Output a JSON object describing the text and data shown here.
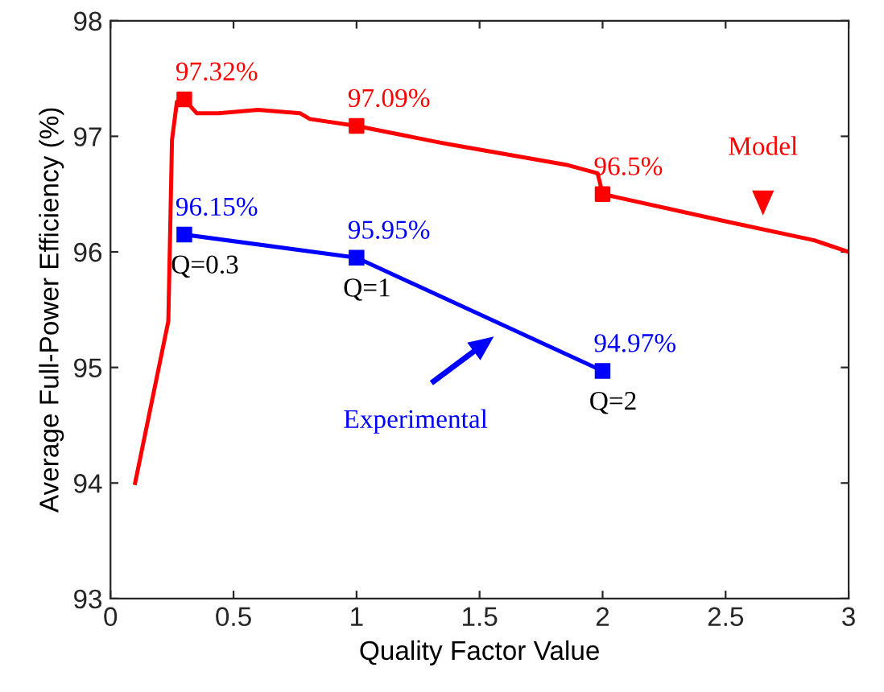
{
  "chart_data": {
    "type": "line",
    "xlabel": "Quality Factor Value",
    "ylabel": "Average Full-Power Efficiency (%)",
    "xlim": [
      0,
      3
    ],
    "ylim": [
      93,
      98
    ],
    "xticks": [
      0,
      0.5,
      1,
      1.5,
      2,
      2.5,
      3
    ],
    "yticks": [
      93,
      94,
      95,
      96,
      97,
      98
    ],
    "grid": false,
    "line_style": "solid",
    "series": [
      {
        "name": "Model",
        "color": "#ff0000",
        "marker": "none",
        "x": [
          0.1,
          0.235,
          0.25,
          0.27,
          0.3,
          0.35,
          0.44,
          0.6,
          0.77,
          0.81,
          1,
          1.33,
          1.38,
          1.86,
          1.98,
          2,
          2.51,
          2.86,
          3
        ],
        "values": [
          94.0,
          95.4,
          96.97,
          97.3,
          97.32,
          97.2,
          97.2,
          97.23,
          97.2,
          97.15,
          97.09,
          96.95,
          96.93,
          96.75,
          96.68,
          96.5,
          96.26,
          96.1,
          96.0
        ]
      },
      {
        "type": "scatter",
        "color": "#ff0000",
        "marker": "square",
        "x": [
          0.3,
          1,
          2
        ],
        "values": [
          97.32,
          97.09,
          96.5
        ],
        "value_labels": [
          "97.32%",
          "97.09%",
          "96.5%"
        ]
      },
      {
        "name": "Experimental",
        "color": "#0000ff",
        "marker": "square",
        "x": [
          0.3,
          1,
          2
        ],
        "values": [
          96.15,
          95.95,
          94.97
        ],
        "value_labels": [
          "96.15%",
          "95.95%",
          "94.97%"
        ]
      }
    ],
    "annotations": [
      {
        "text": "Q=0.3",
        "x": 0.3,
        "y": 96.15
      },
      {
        "text": "Q=1",
        "x": 1,
        "y": 95.95
      },
      {
        "text": "Q=2",
        "x": 2,
        "y": 94.97
      }
    ]
  }
}
